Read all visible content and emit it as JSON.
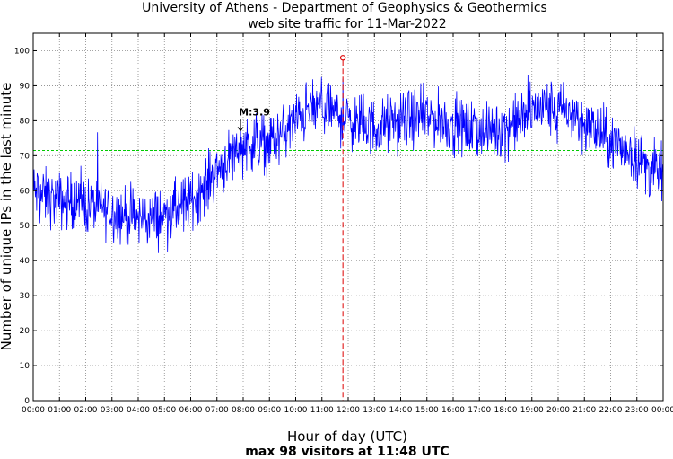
{
  "chart_data": {
    "type": "line",
    "title": "University of Athens - Department of Geophysics & Geothermics",
    "subtitle": "web site traffic for 11-Mar-2022",
    "xlabel": "Hour of day (UTC)",
    "ylabel": "Number of unique IPs in the last minute",
    "footer": "max 98 visitors at 11:48 UTC",
    "xlim": [
      0,
      24
    ],
    "ylim": [
      0,
      105
    ],
    "grid": true,
    "x_ticks": [
      "00:00",
      "01:00",
      "02:00",
      "03:00",
      "04:00",
      "05:00",
      "06:00",
      "07:00",
      "08:00",
      "09:00",
      "10:00",
      "11:00",
      "12:00",
      "13:00",
      "14:00",
      "15:00",
      "16:00",
      "17:00",
      "18:00",
      "19:00",
      "20:00",
      "21:00",
      "22:00",
      "23:00",
      "00:00"
    ],
    "y_ticks": [
      "0",
      "10",
      "20",
      "30",
      "40",
      "50",
      "60",
      "70",
      "80",
      "90",
      "100"
    ],
    "mean_line": {
      "value": 71.5,
      "color": "#00cc00"
    },
    "max_marker": {
      "time_hours": 11.8,
      "value": 98,
      "color": "#dd0000"
    },
    "annotation": {
      "text": "M:3.9",
      "time_hours": 7.9,
      "value": 81
    },
    "series": [
      {
        "color": "#0000ff",
        "noise_amplitude": 5,
        "profile": {
          "x": [
            0,
            0.5,
            1,
            1.5,
            2,
            2.5,
            3,
            3.5,
            4,
            4.5,
            5,
            5.5,
            6,
            6.5,
            7,
            7.5,
            8,
            8.5,
            9,
            9.5,
            10,
            10.5,
            11,
            11.5,
            12,
            12.5,
            13,
            13.5,
            14,
            14.5,
            15,
            15.5,
            16,
            16.5,
            17,
            17.5,
            18,
            18.5,
            19,
            19.5,
            20,
            20.5,
            21,
            21.5,
            22,
            22.5,
            23,
            23.5,
            24
          ],
          "y": [
            60,
            58,
            57,
            57,
            56,
            55.5,
            54,
            53,
            52,
            52,
            53,
            55,
            57,
            61,
            66,
            70,
            73,
            74,
            74,
            76,
            80,
            83,
            84,
            82,
            80,
            79,
            78,
            79,
            80,
            81,
            81,
            80,
            79,
            78,
            77,
            77,
            78,
            80,
            83,
            84,
            83,
            82,
            79,
            77,
            74,
            72,
            70,
            66,
            65
          ]
        }
      }
    ]
  }
}
